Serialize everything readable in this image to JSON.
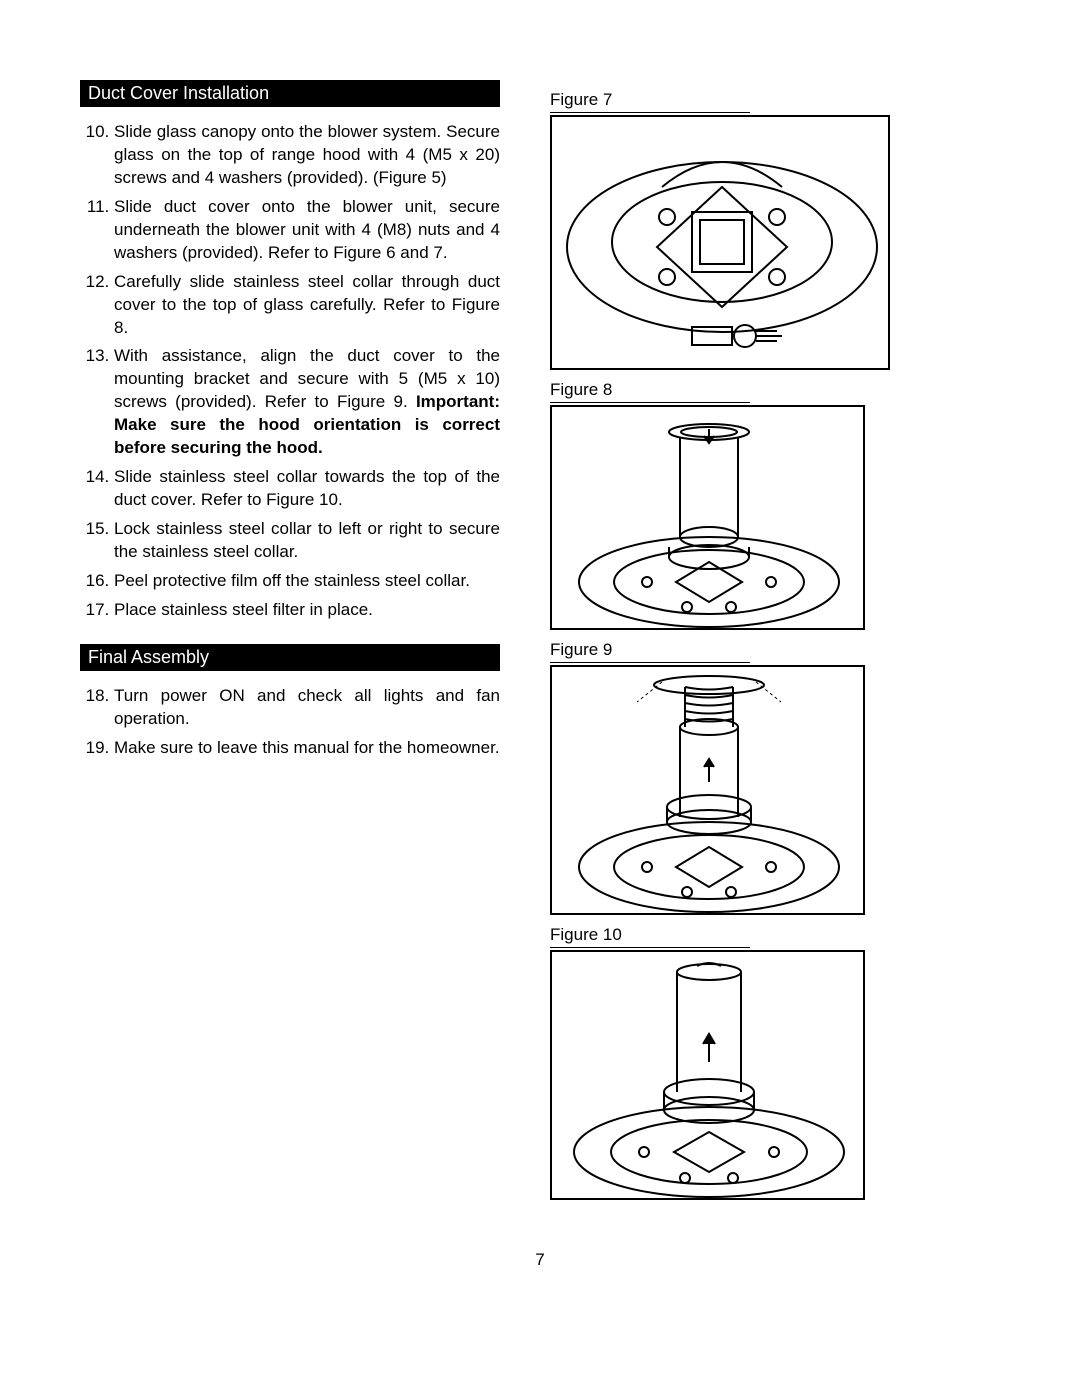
{
  "sections": {
    "duct_header": "Duct Cover Installation",
    "final_header": "Final Assembly"
  },
  "steps1_start": 10,
  "steps1": [
    {
      "text": "Slide glass canopy onto the blower system. Secure glass on the top of range hood with 4 (M5 x 20) screws and 4 washers (provided). (Figure 5)"
    },
    {
      "text": "Slide duct cover onto the blower unit, secure underneath the blower unit with 4 (M8) nuts and 4 washers (provided).  Refer to Figure 6 and 7."
    },
    {
      "text": "Carefully slide stainless steel collar through duct cover to the top of glass carefully. Refer to Figure 8."
    },
    {
      "text_pre": "With assistance, align the duct cover to the mounting bracket and secure with 5 (M5 x 10) screws (provided). Refer to Figure 9. ",
      "bold": "Important: Make sure the hood orientation is correct before securing the hood."
    },
    {
      "text": "Slide stainless steel collar towards the top of the duct cover. Refer to Figure 10."
    },
    {
      "text": "Lock stainless steel collar to left or right to secure the stainless steel collar."
    },
    {
      "text": "Peel protective film off the stainless steel collar."
    },
    {
      "text": "Place stainless steel filter in place."
    }
  ],
  "steps2_start": 18,
  "steps2": [
    {
      "text": "Turn power ON and check all lights and fan operation."
    },
    {
      "text": "Make sure to leave this manual for the homeowner."
    }
  ],
  "figures": {
    "f7": "Figure 7",
    "f8": "Figure 8",
    "f9": "Figure 9",
    "f10": "Figure 10"
  },
  "page_number": "7",
  "colors": {
    "stroke": "#000000",
    "bg": "#ffffff"
  }
}
